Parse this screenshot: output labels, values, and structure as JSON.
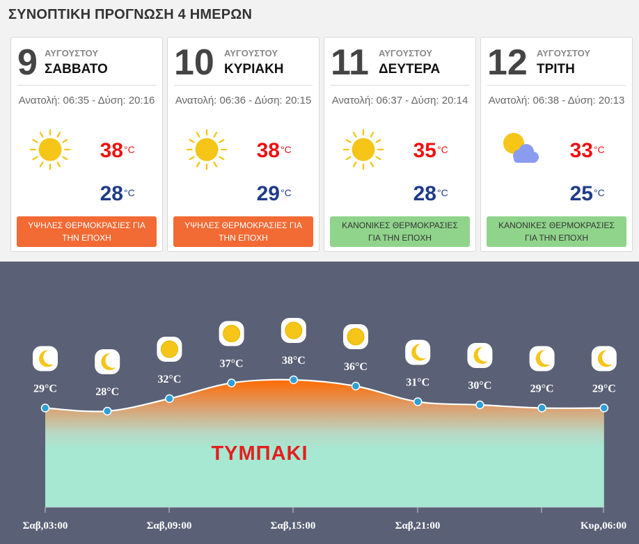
{
  "title": "ΣΥΝΟΠΤΙΚΗ ΠΡΟΓΝΩΣΗ 4 ΗΜΕΡΩΝ",
  "days": [
    {
      "day": "9",
      "month": "ΑΥΓΟΥΣΤΟΥ",
      "weekday": "ΣΑΒΒΑΤΟ",
      "sun": "Ανατολή: 06:35 - Δύση: 20:16",
      "icon": "sun-icon",
      "tmax": "38",
      "tmin": "28",
      "unit": "°C",
      "badge": "ΥΨΗΛΕΣ ΘΕΡΜΟΚΡΑΣΙΕΣ ΓΙΑ ΤΗΝ ΕΠΟΧΗ",
      "badge_type": "hot"
    },
    {
      "day": "10",
      "month": "ΑΥΓΟΥΣΤΟΥ",
      "weekday": "ΚΥΡΙΑΚΗ",
      "sun": "Ανατολή: 06:36 - Δύση: 20:15",
      "icon": "sun-icon",
      "tmax": "38",
      "tmin": "29",
      "unit": "°C",
      "badge": "ΥΨΗΛΕΣ ΘΕΡΜΟΚΡΑΣΙΕΣ ΓΙΑ ΤΗΝ ΕΠΟΧΗ",
      "badge_type": "hot"
    },
    {
      "day": "11",
      "month": "ΑΥΓΟΥΣΤΟΥ",
      "weekday": "ΔΕΥΤΕΡΑ",
      "sun": "Ανατολή: 06:37 - Δύση: 20:14",
      "icon": "sun-icon",
      "tmax": "35",
      "tmin": "28",
      "unit": "°C",
      "badge": "ΚΑΝΟΝΙΚΕΣ ΘΕΡΜΟΚΡΑΣΙΕΣ ΓΙΑ ΤΗΝ ΕΠΟΧΗ",
      "badge_type": "normal"
    },
    {
      "day": "12",
      "month": "ΑΥΓΟΥΣΤΟΥ",
      "weekday": "ΤΡΙΤΗ",
      "sun": "Ανατολή: 06:38 - Δύση: 20:13",
      "icon": "partly-cloudy-icon",
      "tmax": "33",
      "tmin": "25",
      "unit": "°C",
      "badge": "ΚΑΝΟΝΙΚΕΣ ΘΕΡΜΟΚΡΑΣΙΕΣ ΓΙΑ ΤΗΝ ΕΠΟΧΗ",
      "badge_type": "normal"
    }
  ],
  "colors": {
    "hot": "#f26a34",
    "normal": "#90d48c",
    "max": "#e11111",
    "min": "#1f3c88",
    "panel": "#5a6176"
  },
  "chart_data": {
    "type": "area",
    "place": "ΤΥΜΠΑΚΙ",
    "x_ticks": [
      "Σαβ,03:00",
      "Σαβ,09:00",
      "Σαβ,15:00",
      "Σαβ,21:00",
      "Κυρ,06:00"
    ],
    "points": [
      {
        "temp": 29,
        "label": "29°C",
        "icon": "moon-icon"
      },
      {
        "temp": 28,
        "label": "28°C",
        "icon": "moon-icon"
      },
      {
        "temp": 32,
        "label": "32°C",
        "icon": "sun-icon"
      },
      {
        "temp": 37,
        "label": "37°C",
        "icon": "sun-icon"
      },
      {
        "temp": 38,
        "label": "38°C",
        "icon": "sun-icon"
      },
      {
        "temp": 36,
        "label": "36°C",
        "icon": "sun-icon"
      },
      {
        "temp": 31,
        "label": "31°C",
        "icon": "moon-icon"
      },
      {
        "temp": 30,
        "label": "30°C",
        "icon": "moon-icon"
      },
      {
        "temp": 29,
        "label": "29°C",
        "icon": "moon-icon"
      },
      {
        "temp": 29,
        "label": "29°C",
        "icon": "moon-icon"
      }
    ]
  }
}
